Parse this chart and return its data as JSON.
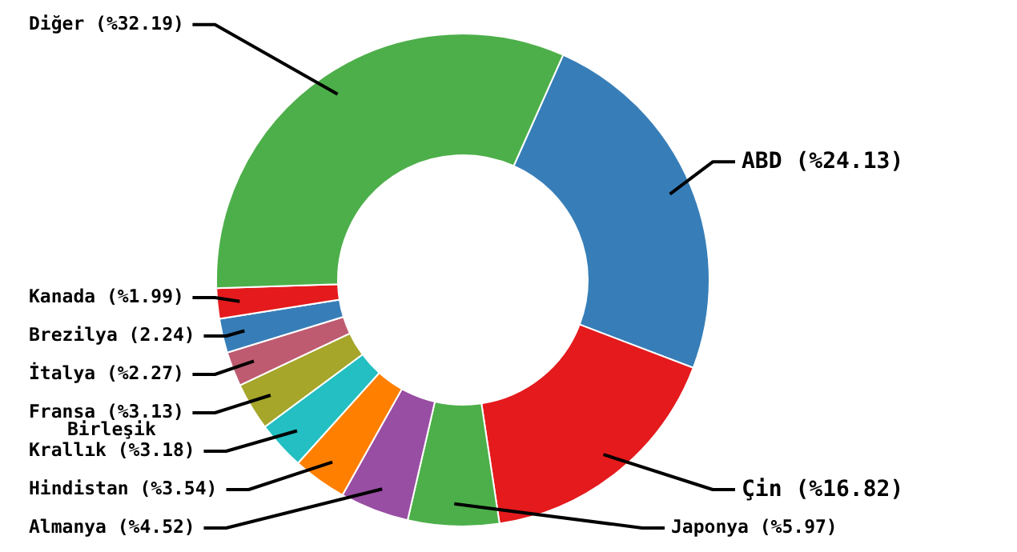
{
  "chart_data": {
    "type": "donut",
    "categories": [
      "ABD (%24.13)",
      "Çin (%16.82)",
      "Japonya (%5.97)",
      "Almanya (%4.52)",
      "Hindistan (%3.54)",
      "Birleşik Krallık (%3.18)",
      "Fransa (%3.13)",
      "İtalya (%2.27)",
      "Brezilya (2.24)",
      "Kanada (%1.99)",
      "Diğer (%32.19)"
    ],
    "values": [
      24.13,
      16.82,
      5.97,
      4.52,
      3.54,
      3.18,
      3.13,
      2.27,
      2.24,
      1.99,
      32.19
    ],
    "colors": [
      "#377eb8",
      "#e41a1c",
      "#4daf4a",
      "#984ea3",
      "#ff7f00",
      "#23bfc2",
      "#a5a62a",
      "#be5b70",
      "#377eb8",
      "#e41a1c",
      "#4daf4a"
    ],
    "legend": false
  }
}
